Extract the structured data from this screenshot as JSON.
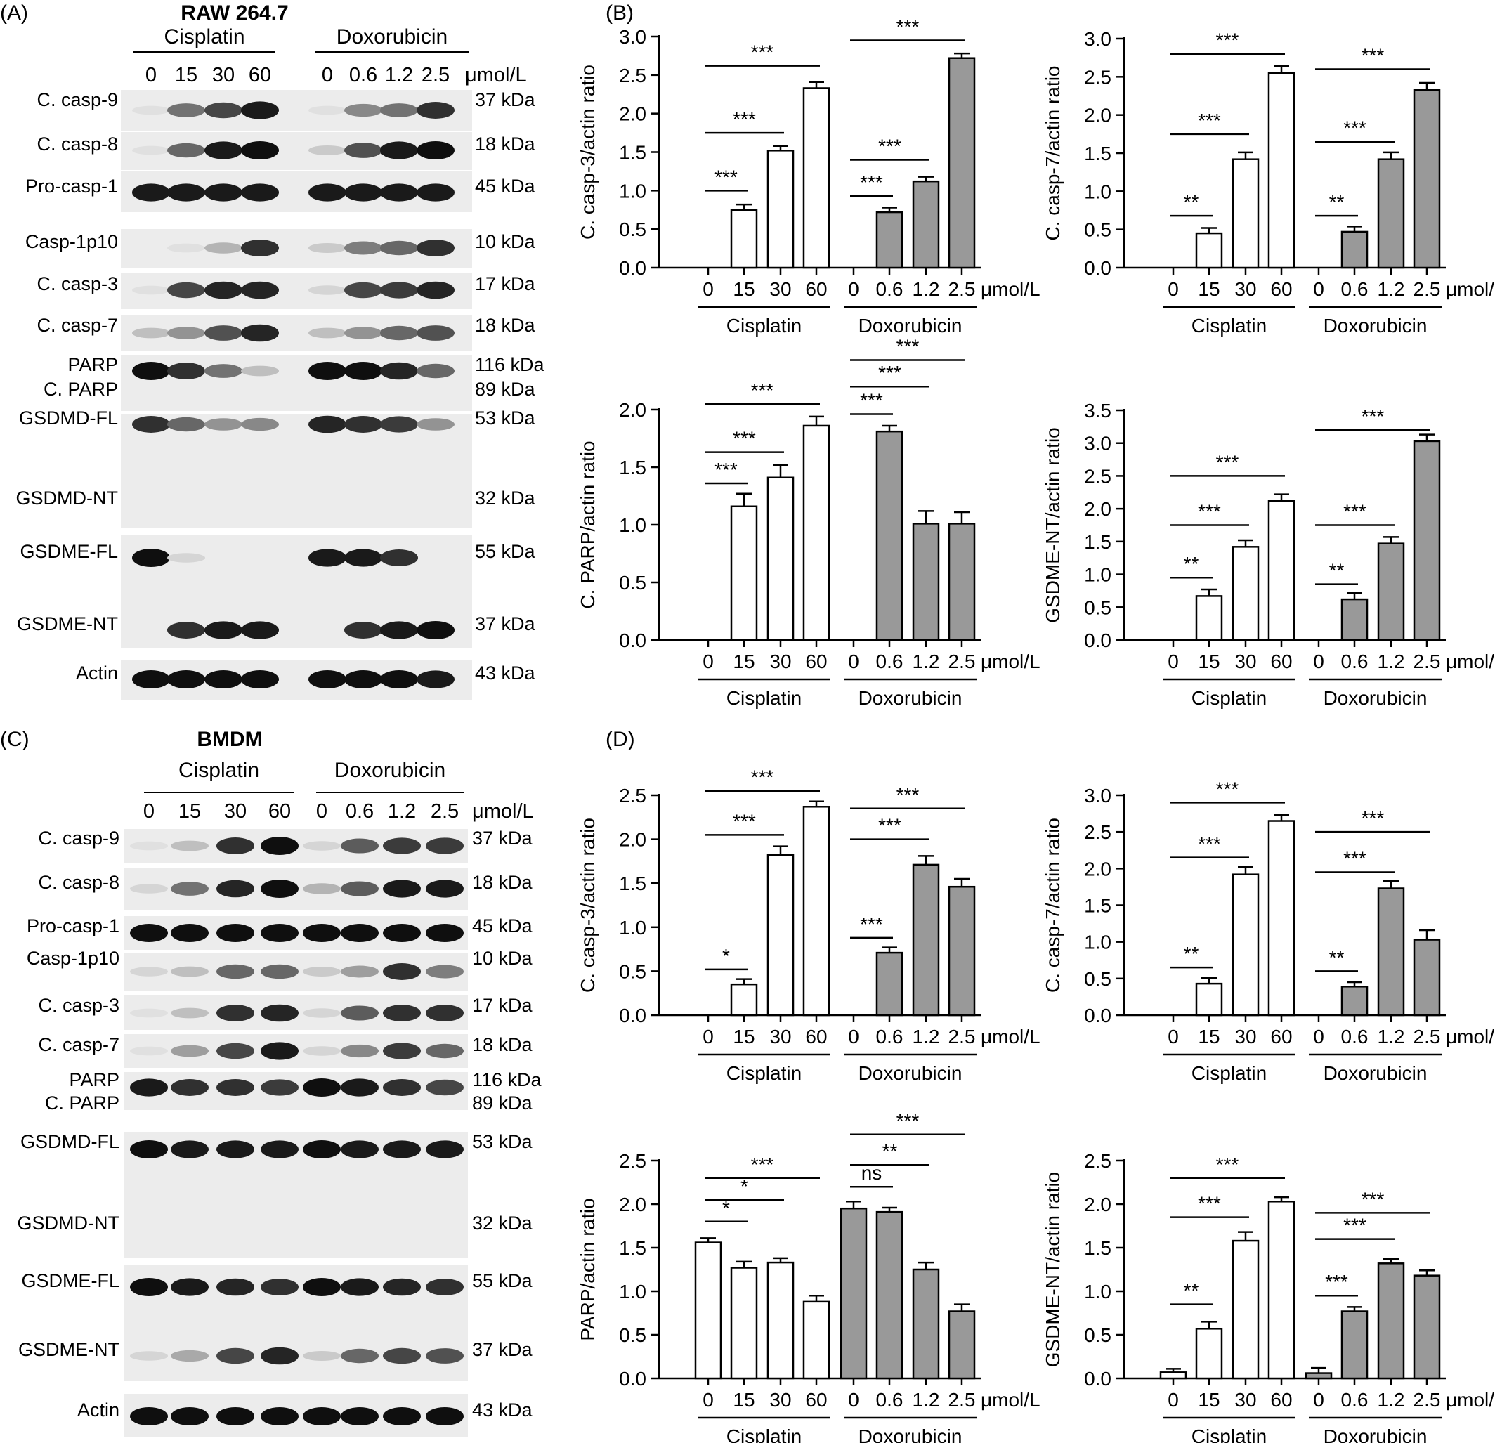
{
  "blot_panels": [
    {
      "letter": "(A)",
      "title": "RAW 264.7",
      "groups": [
        "Cisplatin",
        "Doxorubicin"
      ],
      "lane_labels": [
        "0",
        "15",
        "30",
        "60",
        "0",
        "0.6",
        "1.2",
        "2.5"
      ],
      "unit": "μmol/L",
      "rows": [
        {
          "label": "C. casp-9",
          "kda": "37 kDa",
          "bands": [
            0.05,
            0.55,
            0.75,
            0.95,
            0.05,
            0.45,
            0.55,
            0.85
          ]
        },
        {
          "label": "C. casp-8",
          "kda": "18 kDa",
          "bands": [
            0.05,
            0.6,
            0.95,
            1.0,
            0.15,
            0.7,
            0.95,
            1.0
          ]
        },
        {
          "label": "Pro-casp-1",
          "kda": "45 kDa",
          "bands": [
            0.95,
            0.95,
            0.95,
            0.95,
            0.95,
            0.95,
            0.95,
            0.95
          ]
        },
        {
          "label": "Casp-1p10",
          "kda": "10 kDa",
          "bands": [
            0.0,
            0.05,
            0.25,
            0.85,
            0.15,
            0.5,
            0.6,
            0.85
          ]
        },
        {
          "label": "C. casp-3",
          "kda": "17 kDa",
          "bands": [
            0.05,
            0.75,
            0.9,
            0.9,
            0.1,
            0.75,
            0.8,
            0.9
          ]
        },
        {
          "label": "C. casp-7",
          "kda": "18 kDa",
          "bands": [
            0.2,
            0.4,
            0.7,
            0.9,
            0.2,
            0.4,
            0.6,
            0.7
          ]
        },
        {
          "label": "PARP",
          "label2": "C. PARP",
          "kda": "116 kDa",
          "kda2": "89 kDa",
          "bands": [
            1.0,
            0.85,
            0.55,
            0.2,
            1.0,
            1.0,
            0.9,
            0.6
          ]
        },
        {
          "label": "GSDMD-FL",
          "label2": "GSDMD-NT",
          "kda": "53 kDa",
          "kda2": "32 kDa",
          "bands": [
            0.85,
            0.6,
            0.4,
            0.45,
            0.9,
            0.85,
            0.8,
            0.4
          ]
        },
        {
          "label": "GSDME-FL",
          "label2": "GSDME-NT",
          "kda": "55 kDa",
          "kda2": "37 kDa",
          "bands": [
            1.0,
            0.1,
            0.0,
            0.0,
            0.95,
            0.95,
            0.85,
            0.0
          ],
          "bands2": [
            0.0,
            0.85,
            0.95,
            0.95,
            0.0,
            0.85,
            0.95,
            1.0
          ]
        },
        {
          "label": "Actin",
          "kda": "43 kDa",
          "bands": [
            1.0,
            1.0,
            1.0,
            1.0,
            1.0,
            1.0,
            1.0,
            0.95
          ]
        }
      ]
    },
    {
      "letter": "(C)",
      "title": "BMDM",
      "groups": [
        "Cisplatin",
        "Doxorubicin"
      ],
      "lane_labels": [
        "0",
        "15",
        "30",
        "60",
        "0",
        "0.6",
        "1.2",
        "2.5"
      ],
      "unit": "μmol/L",
      "rows": [
        {
          "label": "C. casp-9",
          "kda": "37 kDa",
          "bands": [
            0.05,
            0.2,
            0.85,
            1.0,
            0.1,
            0.65,
            0.8,
            0.8
          ]
        },
        {
          "label": "C. casp-8",
          "kda": "18 kDa",
          "bands": [
            0.1,
            0.55,
            0.9,
            1.0,
            0.25,
            0.65,
            0.95,
            0.95
          ]
        },
        {
          "label": "Pro-casp-1",
          "kda": "45 kDa",
          "bands": [
            1.0,
            1.0,
            1.0,
            1.0,
            1.0,
            1.0,
            1.0,
            1.0
          ]
        },
        {
          "label": "Casp-1p10",
          "kda": "10 kDa",
          "bands": [
            0.1,
            0.2,
            0.6,
            0.6,
            0.15,
            0.35,
            0.85,
            0.5
          ]
        },
        {
          "label": "C. casp-3",
          "kda": "17 kDa",
          "bands": [
            0.05,
            0.2,
            0.85,
            0.9,
            0.1,
            0.65,
            0.85,
            0.85
          ]
        },
        {
          "label": "C. casp-7",
          "kda": "18 kDa",
          "bands": [
            0.05,
            0.35,
            0.75,
            0.95,
            0.1,
            0.45,
            0.8,
            0.6
          ]
        },
        {
          "label": "PARP",
          "label2": "C. PARP",
          "kda": "116 kDa",
          "kda2": "89 kDa",
          "bands": [
            0.95,
            0.85,
            0.85,
            0.8,
            1.0,
            0.95,
            0.85,
            0.75
          ]
        },
        {
          "label": "GSDMD-FL",
          "label2": "GSDMD-NT",
          "kda": "53 kDa",
          "kda2": "32 kDa",
          "bands": [
            1.0,
            0.95,
            0.95,
            0.95,
            1.0,
            0.95,
            0.95,
            0.95
          ]
        },
        {
          "label": "GSDME-FL",
          "label2": "GSDME-NT",
          "kda": "55 kDa",
          "kda2": "37 kDa",
          "bands": [
            1.0,
            0.95,
            0.9,
            0.85,
            1.0,
            0.95,
            0.9,
            0.85
          ],
          "bands2": [
            0.1,
            0.3,
            0.75,
            0.9,
            0.15,
            0.6,
            0.75,
            0.7
          ]
        },
        {
          "label": "Actin",
          "kda": "43 kDa",
          "bands": [
            1.0,
            1.0,
            1.0,
            1.0,
            1.0,
            1.0,
            1.0,
            1.0
          ]
        }
      ]
    }
  ],
  "chart_data": [
    {
      "type": "bar",
      "panel": "(B)",
      "ylabel": "C. casp-3/actin ratio",
      "ylim": [
        0,
        3.0
      ],
      "yticks": [
        "0.0",
        "0.5",
        "1.0",
        "1.5",
        "2.0",
        "2.5",
        "3.0"
      ],
      "categories": [
        "0",
        "15",
        "30",
        "60",
        "0",
        "0.6",
        "1.2",
        "2.5"
      ],
      "groups": [
        "Cisplatin",
        "Doxorubicin"
      ],
      "unit": "μmol/L",
      "values": [
        0,
        0.75,
        1.52,
        2.33,
        0,
        0.72,
        1.12,
        2.72
      ],
      "errors": [
        0,
        0.07,
        0.06,
        0.08,
        0,
        0.06,
        0.06,
        0.06
      ],
      "significance": [
        {
          "from": 0,
          "to": 1,
          "level": 1.0,
          "label": "***"
        },
        {
          "from": 0,
          "to": 2,
          "level": 1.75,
          "label": "***"
        },
        {
          "from": 0,
          "to": 3,
          "level": 2.62,
          "label": "***"
        },
        {
          "from": 4,
          "to": 5,
          "level": 0.93,
          "label": "***"
        },
        {
          "from": 4,
          "to": 6,
          "level": 1.4,
          "label": "***"
        },
        {
          "from": 4,
          "to": 7,
          "level": 2.95,
          "label": "***"
        }
      ]
    },
    {
      "type": "bar",
      "panel": "",
      "ylabel": "C. casp-7/actin ratio",
      "ylim": [
        0,
        3.0
      ],
      "yticks": [
        "0.0",
        "0.5",
        "1.0",
        "1.5",
        "2.0",
        "2.5",
        "3.0"
      ],
      "categories": [
        "0",
        "15",
        "30",
        "60",
        "0",
        "0.6",
        "1.2",
        "2.5"
      ],
      "groups": [
        "Cisplatin",
        "Doxorubicin"
      ],
      "unit": "μmol/L",
      "values": [
        0,
        0.45,
        1.42,
        2.55,
        0,
        0.47,
        1.42,
        2.33
      ],
      "errors": [
        0,
        0.07,
        0.09,
        0.09,
        0,
        0.07,
        0.09,
        0.09
      ],
      "significance": [
        {
          "from": 0,
          "to": 1,
          "level": 0.68,
          "label": "**"
        },
        {
          "from": 0,
          "to": 2,
          "level": 1.75,
          "label": "***"
        },
        {
          "from": 0,
          "to": 3,
          "level": 2.8,
          "label": "***"
        },
        {
          "from": 4,
          "to": 5,
          "level": 0.68,
          "label": "**"
        },
        {
          "from": 4,
          "to": 6,
          "level": 1.65,
          "label": "***"
        },
        {
          "from": 4,
          "to": 7,
          "level": 2.6,
          "label": "***"
        }
      ]
    },
    {
      "type": "bar",
      "panel": "",
      "ylabel": "C. PARP/actin ratio",
      "ylim": [
        0,
        2.0
      ],
      "yticks": [
        "0.0",
        "0.5",
        "1.0",
        "1.5",
        "2.0"
      ],
      "categories": [
        "0",
        "15",
        "30",
        "60",
        "0",
        "0.6",
        "1.2",
        "2.5"
      ],
      "groups": [
        "Cisplatin",
        "Doxorubicin"
      ],
      "unit": "μmol/L",
      "values": [
        0,
        1.16,
        1.41,
        1.86,
        0,
        1.81,
        1.01,
        1.01
      ],
      "errors": [
        0,
        0.11,
        0.11,
        0.08,
        0,
        0.05,
        0.11,
        0.1
      ],
      "significance": [
        {
          "from": 0,
          "to": 1,
          "level": 1.36,
          "label": "***"
        },
        {
          "from": 0,
          "to": 2,
          "level": 1.63,
          "label": "***"
        },
        {
          "from": 0,
          "to": 3,
          "level": 2.05,
          "label": "***"
        },
        {
          "from": 4,
          "to": 5,
          "level": 1.96,
          "label": "***"
        },
        {
          "from": 4,
          "to": 6,
          "level": 2.2,
          "label": "***"
        },
        {
          "from": 4,
          "to": 7,
          "level": 2.43,
          "label": "***"
        }
      ]
    },
    {
      "type": "bar",
      "panel": "",
      "ylabel": "GSDME-NT/actin ratio",
      "ylim": [
        0,
        3.5
      ],
      "yticks": [
        "0.0",
        "0.5",
        "1.0",
        "1.5",
        "2.0",
        "2.5",
        "3.0",
        "3.5"
      ],
      "categories": [
        "0",
        "15",
        "30",
        "60",
        "0",
        "0.6",
        "1.2",
        "2.5"
      ],
      "groups": [
        "Cisplatin",
        "Doxorubicin"
      ],
      "unit": "μmol/L",
      "values": [
        0,
        0.67,
        1.42,
        2.12,
        0,
        0.62,
        1.47,
        3.03
      ],
      "errors": [
        0,
        0.1,
        0.1,
        0.1,
        0,
        0.1,
        0.1,
        0.1
      ],
      "significance": [
        {
          "from": 0,
          "to": 1,
          "level": 0.95,
          "label": "**"
        },
        {
          "from": 0,
          "to": 2,
          "level": 1.75,
          "label": "***"
        },
        {
          "from": 0,
          "to": 3,
          "level": 2.5,
          "label": "***"
        },
        {
          "from": 4,
          "to": 5,
          "level": 0.85,
          "label": "**"
        },
        {
          "from": 4,
          "to": 6,
          "level": 1.75,
          "label": "***"
        },
        {
          "from": 4,
          "to": 7,
          "level": 3.2,
          "label": "***"
        }
      ]
    },
    {
      "type": "bar",
      "panel": "(D)",
      "ylabel": "C. casp-3/actin ratio",
      "ylim": [
        0,
        2.5
      ],
      "yticks": [
        "0.0",
        "0.5",
        "1.0",
        "1.5",
        "2.0",
        "2.5"
      ],
      "categories": [
        "0",
        "15",
        "30",
        "60",
        "0",
        "0.6",
        "1.2",
        "2.5"
      ],
      "groups": [
        "Cisplatin",
        "Doxorubicin"
      ],
      "unit": "μmol/L",
      "values": [
        0,
        0.35,
        1.82,
        2.37,
        0,
        0.71,
        1.71,
        1.46
      ],
      "errors": [
        0,
        0.06,
        0.1,
        0.06,
        0,
        0.06,
        0.1,
        0.09
      ],
      "significance": [
        {
          "from": 0,
          "to": 1,
          "level": 0.52,
          "label": "*"
        },
        {
          "from": 0,
          "to": 2,
          "level": 2.05,
          "label": "***"
        },
        {
          "from": 0,
          "to": 3,
          "level": 2.55,
          "label": "***"
        },
        {
          "from": 4,
          "to": 5,
          "level": 0.88,
          "label": "***"
        },
        {
          "from": 4,
          "to": 6,
          "level": 2.0,
          "label": "***"
        },
        {
          "from": 4,
          "to": 7,
          "level": 2.35,
          "label": "***"
        }
      ]
    },
    {
      "type": "bar",
      "panel": "",
      "ylabel": "C. casp-7/actin ratio",
      "ylim": [
        0,
        3.0
      ],
      "yticks": [
        "0.0",
        "0.5",
        "1.0",
        "1.5",
        "2.0",
        "2.5",
        "3.0"
      ],
      "categories": [
        "0",
        "15",
        "30",
        "60",
        "0",
        "0.6",
        "1.2",
        "2.5"
      ],
      "groups": [
        "Cisplatin",
        "Doxorubicin"
      ],
      "unit": "μmol/L",
      "values": [
        0,
        0.43,
        1.92,
        2.65,
        0,
        0.39,
        1.73,
        1.03
      ],
      "errors": [
        0,
        0.08,
        0.1,
        0.08,
        0,
        0.06,
        0.1,
        0.13
      ],
      "significance": [
        {
          "from": 0,
          "to": 1,
          "level": 0.65,
          "label": "**"
        },
        {
          "from": 0,
          "to": 2,
          "level": 2.15,
          "label": "***"
        },
        {
          "from": 0,
          "to": 3,
          "level": 2.9,
          "label": "***"
        },
        {
          "from": 4,
          "to": 5,
          "level": 0.6,
          "label": "**"
        },
        {
          "from": 4,
          "to": 6,
          "level": 1.95,
          "label": "***"
        },
        {
          "from": 4,
          "to": 7,
          "level": 2.5,
          "label": "***"
        }
      ]
    },
    {
      "type": "bar",
      "panel": "",
      "ylabel": "PARP/actin ratio",
      "ylim": [
        0,
        2.5
      ],
      "yticks": [
        "0.0",
        "0.5",
        "1.0",
        "1.5",
        "2.0",
        "2.5"
      ],
      "categories": [
        "0",
        "15",
        "30",
        "60",
        "0",
        "0.6",
        "1.2",
        "2.5"
      ],
      "groups": [
        "Cisplatin",
        "Doxorubicin"
      ],
      "unit": "μmol/L",
      "values": [
        1.56,
        1.27,
        1.33,
        0.88,
        1.95,
        1.91,
        1.25,
        0.77
      ],
      "errors": [
        0.05,
        0.07,
        0.05,
        0.07,
        0.08,
        0.05,
        0.08,
        0.08
      ],
      "significance": [
        {
          "from": 0,
          "to": 1,
          "level": 1.8,
          "label": "*"
        },
        {
          "from": 0,
          "to": 2,
          "level": 2.05,
          "label": "*"
        },
        {
          "from": 0,
          "to": 3,
          "level": 2.3,
          "label": "***"
        },
        {
          "from": 4,
          "to": 5,
          "level": 2.2,
          "label": "ns"
        },
        {
          "from": 4,
          "to": 6,
          "level": 2.45,
          "label": "**"
        },
        {
          "from": 4,
          "to": 7,
          "level": 2.8,
          "label": "***"
        }
      ]
    },
    {
      "type": "bar",
      "panel": "",
      "ylabel": "GSDME-NT/actin ratio",
      "ylim": [
        0,
        2.5
      ],
      "yticks": [
        "0.0",
        "0.5",
        "1.0",
        "1.5",
        "2.0",
        "2.5"
      ],
      "categories": [
        "0",
        "15",
        "30",
        "60",
        "0",
        "0.6",
        "1.2",
        "2.5"
      ],
      "groups": [
        "Cisplatin",
        "Doxorubicin"
      ],
      "unit": "μmol/L",
      "values": [
        0.07,
        0.57,
        1.58,
        2.03,
        0.06,
        0.77,
        1.32,
        1.18
      ],
      "errors": [
        0.04,
        0.08,
        0.1,
        0.05,
        0.06,
        0.05,
        0.05,
        0.06
      ],
      "significance": [
        {
          "from": 0,
          "to": 1,
          "level": 0.85,
          "label": "**"
        },
        {
          "from": 0,
          "to": 2,
          "level": 1.85,
          "label": "***"
        },
        {
          "from": 0,
          "to": 3,
          "level": 2.3,
          "label": "***"
        },
        {
          "from": 4,
          "to": 5,
          "level": 0.95,
          "label": "***"
        },
        {
          "from": 4,
          "to": 6,
          "level": 1.6,
          "label": "***"
        },
        {
          "from": 4,
          "to": 7,
          "level": 1.9,
          "label": "***"
        }
      ]
    }
  ],
  "colors": {
    "cisplatin_bar": "#ffffff",
    "doxorubicin_bar": "#999999",
    "ink": "#000000"
  }
}
